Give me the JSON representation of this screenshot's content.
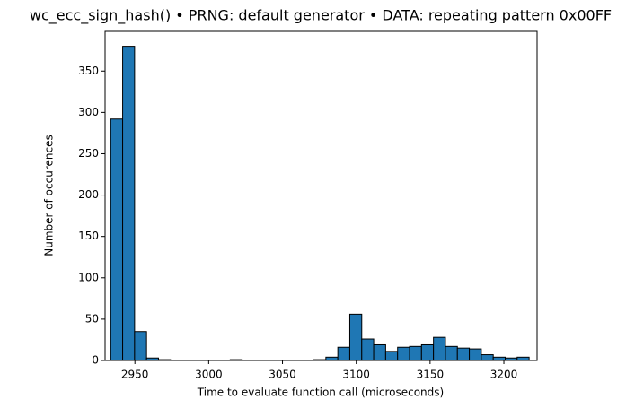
{
  "chart_data": {
    "type": "histogram",
    "title": "wc_ecc_sign_hash() • PRNG: default generator • DATA: repeating pattern 0x00FF",
    "xlabel": "Time to evaluate function call (microseconds)",
    "ylabel": "Number of occurences",
    "bins": [
      2933.6,
      2941.7,
      2949.8,
      2957.9,
      2966.0,
      2974.1,
      2982.2,
      2990.3,
      2998.4,
      3006.5,
      3014.6,
      3022.7,
      3030.8,
      3038.9,
      3047.0,
      3055.1,
      3063.2,
      3071.3,
      3079.4,
      3087.5,
      3095.6,
      3103.7,
      3111.8,
      3119.9,
      3128.0,
      3136.1,
      3144.2,
      3152.3,
      3160.4,
      3168.5,
      3176.6,
      3184.7,
      3192.8,
      3200.9,
      3209.0,
      3217.1
    ],
    "values": [
      292,
      380,
      35,
      3,
      1,
      0,
      0,
      0,
      0,
      0,
      1,
      0,
      0,
      0,
      0,
      0,
      0,
      1,
      4,
      16,
      56,
      26,
      19,
      11,
      16,
      17,
      19,
      28,
      17,
      15,
      14,
      7,
      4,
      3,
      4
    ],
    "color": "#1f77b4",
    "xlim": [
      2929.8,
      3222.5
    ],
    "ylim": [
      0,
      398
    ],
    "xticks": [
      2950,
      3000,
      3050,
      3100,
      3150,
      3200
    ],
    "yticks": [
      0,
      50,
      100,
      150,
      200,
      250,
      300,
      350
    ]
  }
}
